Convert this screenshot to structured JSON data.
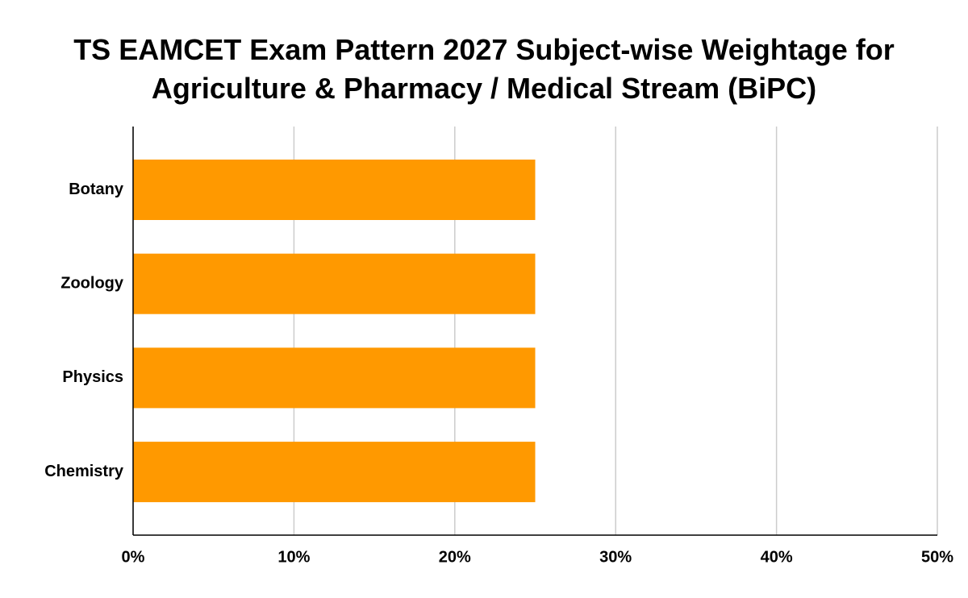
{
  "chart_data": {
    "type": "bar",
    "orientation": "horizontal",
    "title": "TS EAMCET Exam Pattern 2027 Subject-wise Weightage for Agriculture & Pharmacy / Medical Stream (BiPC)",
    "categories": [
      "Botany",
      "Zoology",
      "Physics",
      "Chemistry"
    ],
    "values": [
      25,
      25,
      25,
      25
    ],
    "color": "#ff9900",
    "xlim": [
      0,
      50
    ],
    "xticks": [
      {
        "value": 0,
        "label": "0%"
      },
      {
        "value": 10,
        "label": "10%"
      },
      {
        "value": 20,
        "label": "20%"
      },
      {
        "value": 30,
        "label": "30%"
      },
      {
        "value": 40,
        "label": "40%"
      },
      {
        "value": 50,
        "label": "50%"
      }
    ],
    "grid": true
  }
}
